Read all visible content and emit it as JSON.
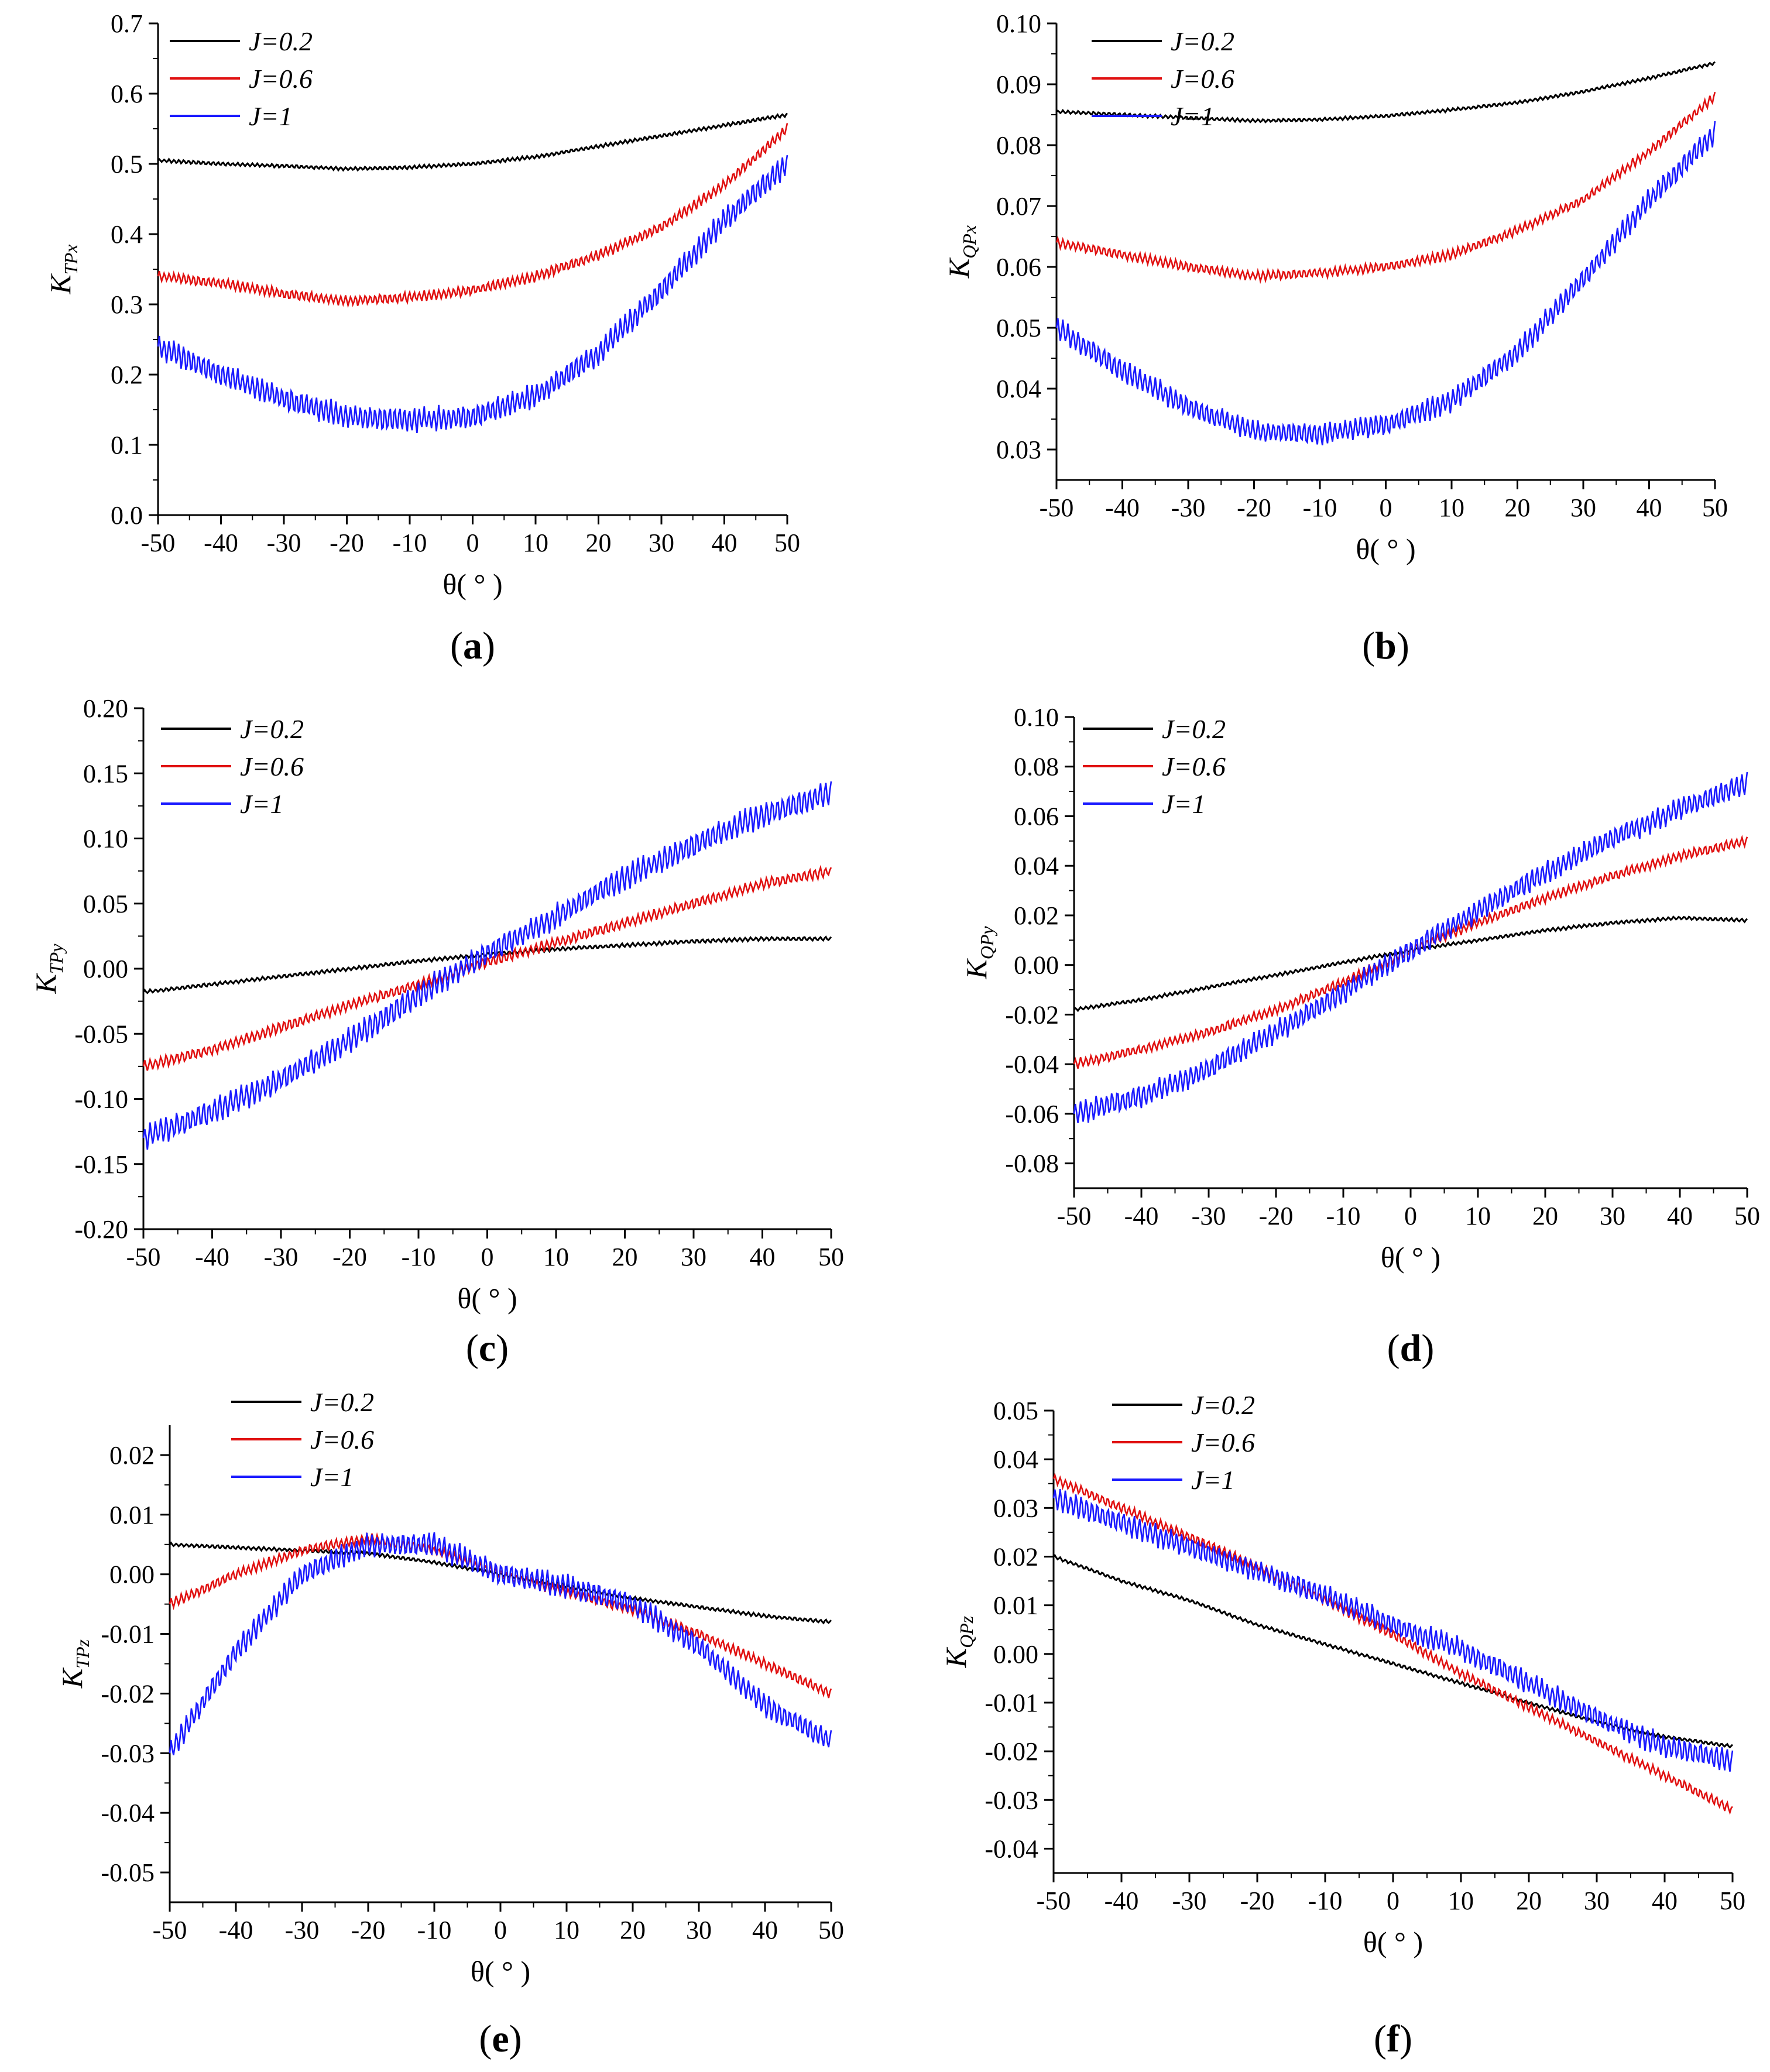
{
  "colors": {
    "J=0.2": "#000000",
    "J=0.6": "#e01010",
    "J=1": "#1a1aff"
  },
  "chart_data": [
    {
      "panel": "(a)",
      "panel_letter": "a",
      "type": "line",
      "ylabel": "K",
      "ylabel_sub": "TPx",
      "xlabel": "θ( ° )",
      "xlim": [
        -50,
        50
      ],
      "ylim": [
        0,
        0.7
      ],
      "xticks": [
        "-50",
        "-40",
        "-30",
        "-20",
        "-10",
        "0",
        "10",
        "20",
        "30",
        "40",
        "50"
      ],
      "yticks": [
        "0.0",
        "0.1",
        "0.2",
        "0.3",
        "0.4",
        "0.5",
        "0.6",
        "0.7"
      ],
      "legend": [
        "J=0.2",
        "J=0.6",
        "J=1"
      ],
      "legend_position": "top-left",
      "x": [
        -50,
        -40,
        -30,
        -20,
        -10,
        0,
        10,
        20,
        30,
        40,
        50
      ],
      "series": [
        {
          "name": "J=0.2",
          "values": [
            0.505,
            0.5,
            0.497,
            0.493,
            0.495,
            0.5,
            0.51,
            0.525,
            0.54,
            0.555,
            0.57
          ]
        },
        {
          "name": "J=0.6",
          "values": [
            0.34,
            0.33,
            0.315,
            0.305,
            0.31,
            0.32,
            0.34,
            0.37,
            0.41,
            0.47,
            0.55
          ]
        },
        {
          "name": "J=1",
          "values": [
            0.24,
            0.2,
            0.165,
            0.14,
            0.135,
            0.14,
            0.17,
            0.23,
            0.32,
            0.42,
            0.5
          ]
        }
      ]
    },
    {
      "panel": "(b)",
      "panel_letter": "b",
      "type": "line",
      "ylabel": "K",
      "ylabel_sub": "QPx",
      "xlabel": "θ( ° )",
      "xlim": [
        -50,
        50
      ],
      "ylim": [
        0.025,
        0.1
      ],
      "xticks": [
        "-50",
        "-40",
        "-30",
        "-20",
        "-10",
        "0",
        "10",
        "20",
        "30",
        "40",
        "50"
      ],
      "yticks": [
        "0.03",
        "0.04",
        "0.05",
        "0.06",
        "0.07",
        "0.08",
        "0.09",
        "0.10"
      ],
      "legend": [
        "J=0.2",
        "J=0.6",
        "J=1"
      ],
      "legend_position": "top-left",
      "x": [
        -50,
        -40,
        -30,
        -20,
        -10,
        0,
        10,
        20,
        30,
        40,
        50
      ],
      "series": [
        {
          "name": "J=0.2",
          "values": [
            0.0855,
            0.085,
            0.0845,
            0.084,
            0.0842,
            0.0848,
            0.0858,
            0.087,
            0.0888,
            0.091,
            0.0935
          ]
        },
        {
          "name": "J=0.6",
          "values": [
            0.064,
            0.062,
            0.06,
            0.0585,
            0.059,
            0.06,
            0.062,
            0.066,
            0.071,
            0.079,
            0.088
          ]
        },
        {
          "name": "J=1",
          "values": [
            0.05,
            0.043,
            0.037,
            0.033,
            0.0325,
            0.034,
            0.038,
            0.046,
            0.058,
            0.071,
            0.082
          ]
        }
      ]
    },
    {
      "panel": "(c)",
      "panel_letter": "c",
      "type": "line",
      "ylabel": "K",
      "ylabel_sub": "TPy",
      "xlabel": "θ( ° )",
      "xlim": [
        -50,
        50
      ],
      "ylim": [
        -0.2,
        0.2
      ],
      "xticks": [
        "-50",
        "-40",
        "-30",
        "-20",
        "-10",
        "0",
        "10",
        "20",
        "30",
        "40",
        "50"
      ],
      "yticks": [
        "-0.20",
        "-0.15",
        "-0.10",
        "-0.05",
        "0.00",
        "0.05",
        "0.10",
        "0.15",
        "0.20"
      ],
      "legend": [
        "J=0.2",
        "J=0.6",
        "J=1"
      ],
      "legend_position": "top-left",
      "x": [
        -50,
        -40,
        -30,
        -20,
        -10,
        0,
        10,
        20,
        30,
        40,
        50
      ],
      "series": [
        {
          "name": "J=0.2",
          "values": [
            -0.018,
            -0.012,
            -0.006,
            0.0,
            0.006,
            0.011,
            0.015,
            0.018,
            0.021,
            0.023,
            0.023
          ]
        },
        {
          "name": "J=0.6",
          "values": [
            -0.075,
            -0.062,
            -0.045,
            -0.028,
            -0.012,
            0.005,
            0.02,
            0.035,
            0.05,
            0.065,
            0.075
          ]
        },
        {
          "name": "J=1",
          "values": [
            -0.13,
            -0.11,
            -0.085,
            -0.055,
            -0.02,
            0.012,
            0.04,
            0.07,
            0.095,
            0.118,
            0.135
          ]
        }
      ]
    },
    {
      "panel": "(d)",
      "panel_letter": "d",
      "type": "line",
      "ylabel": "K",
      "ylabel_sub": "QPy",
      "xlabel": "θ( ° )",
      "xlim": [
        -50,
        50
      ],
      "ylim": [
        -0.09,
        0.1
      ],
      "xticks": [
        "-50",
        "-40",
        "-30",
        "-20",
        "-10",
        "0",
        "10",
        "20",
        "30",
        "40",
        "50"
      ],
      "yticks": [
        "-0.08",
        "-0.06",
        "-0.04",
        "-0.02",
        "0.00",
        "0.02",
        "0.04",
        "0.06",
        "0.08",
        "0.10"
      ],
      "legend": [
        "J=0.2",
        "J=0.6",
        "J=1"
      ],
      "legend_position": "top-left",
      "x": [
        -50,
        -40,
        -30,
        -20,
        -10,
        0,
        10,
        20,
        30,
        40,
        50
      ],
      "series": [
        {
          "name": "J=0.2",
          "values": [
            -0.018,
            -0.014,
            -0.009,
            -0.004,
            0.001,
            0.006,
            0.01,
            0.014,
            0.017,
            0.019,
            0.018
          ]
        },
        {
          "name": "J=0.6",
          "values": [
            -0.04,
            -0.034,
            -0.027,
            -0.018,
            -0.007,
            0.006,
            0.017,
            0.027,
            0.036,
            0.044,
            0.05
          ]
        },
        {
          "name": "J=1",
          "values": [
            -0.06,
            -0.053,
            -0.042,
            -0.027,
            -0.011,
            0.006,
            0.022,
            0.037,
            0.051,
            0.063,
            0.073
          ]
        }
      ]
    },
    {
      "panel": "(e)",
      "panel_letter": "e",
      "type": "line",
      "ylabel": "K",
      "ylabel_sub": "TPz",
      "xlabel": "θ( ° )",
      "xlim": [
        -50,
        50
      ],
      "ylim": [
        -0.055,
        0.025
      ],
      "xticks": [
        "-50",
        "-40",
        "-30",
        "-20",
        "-10",
        "0",
        "10",
        "20",
        "30",
        "40",
        "50"
      ],
      "yticks": [
        "-0.05",
        "-0.04",
        "-0.03",
        "-0.02",
        "-0.01",
        "0.00",
        "0.01",
        "0.02"
      ],
      "legend": [
        "J=0.2",
        "J=0.6",
        "J=1"
      ],
      "legend_position": "top-center",
      "x": [
        -50,
        -40,
        -30,
        -20,
        -10,
        0,
        10,
        20,
        30,
        40,
        50
      ],
      "series": [
        {
          "name": "J=0.2",
          "values": [
            0.005,
            0.0045,
            0.004,
            0.0035,
            0.002,
            0.0,
            -0.002,
            -0.004,
            -0.0055,
            -0.007,
            -0.008
          ]
        },
        {
          "name": "J=0.6",
          "values": [
            -0.005,
            0.0,
            0.004,
            0.006,
            0.004,
            0.0,
            -0.003,
            -0.006,
            -0.01,
            -0.015,
            -0.02
          ]
        },
        {
          "name": "J=1",
          "values": [
            -0.03,
            -0.013,
            0.0,
            0.005,
            0.005,
            0.0,
            -0.002,
            -0.005,
            -0.012,
            -0.022,
            -0.028
          ]
        }
      ]
    },
    {
      "panel": "(f)",
      "panel_letter": "f",
      "type": "line",
      "ylabel": "K",
      "ylabel_sub": "QPz",
      "xlabel": "θ( ° )",
      "xlim": [
        -50,
        50
      ],
      "ylim": [
        -0.045,
        0.05
      ],
      "xticks": [
        "-50",
        "-40",
        "-30",
        "-20",
        "-10",
        "0",
        "10",
        "20",
        "30",
        "40",
        "50"
      ],
      "yticks": [
        "-0.04",
        "-0.03",
        "-0.02",
        "-0.01",
        "0.00",
        "0.01",
        "0.02",
        "0.03",
        "0.04",
        "0.05"
      ],
      "legend": [
        "J=0.2",
        "J=0.6",
        "J=1"
      ],
      "legend_position": "top-center",
      "x": [
        -50,
        -40,
        -30,
        -20,
        -10,
        0,
        10,
        20,
        30,
        40,
        50
      ],
      "series": [
        {
          "name": "J=0.2",
          "values": [
            0.02,
            0.015,
            0.011,
            0.006,
            0.002,
            -0.002,
            -0.006,
            -0.01,
            -0.014,
            -0.017,
            -0.019
          ]
        },
        {
          "name": "J=0.6",
          "values": [
            0.036,
            0.03,
            0.024,
            0.018,
            0.011,
            0.004,
            -0.004,
            -0.011,
            -0.018,
            -0.025,
            -0.032
          ]
        },
        {
          "name": "J=1",
          "values": [
            0.032,
            0.027,
            0.022,
            0.017,
            0.012,
            0.006,
            0.001,
            -0.006,
            -0.013,
            -0.019,
            -0.022
          ]
        }
      ]
    }
  ]
}
